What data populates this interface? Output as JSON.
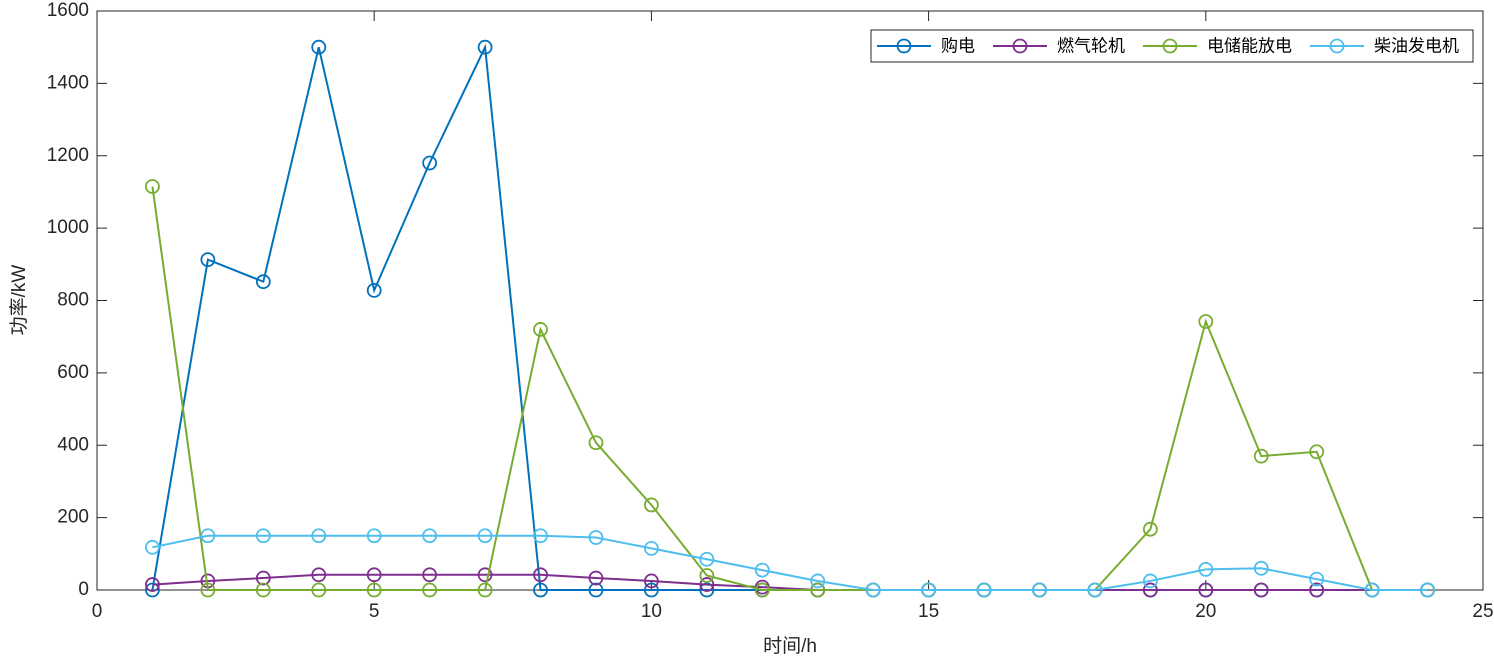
{
  "chart_data": {
    "type": "line",
    "x": [
      1,
      2,
      3,
      4,
      5,
      6,
      7,
      8,
      9,
      10,
      11,
      12,
      13,
      14,
      15,
      16,
      17,
      18,
      19,
      20,
      21,
      22,
      23,
      24
    ],
    "series": [
      {
        "name": "购电",
        "color": "#0072BD",
        "values": [
          0,
          913,
          852,
          1500,
          828,
          1180,
          1500,
          0,
          0,
          0,
          0,
          0,
          0,
          0,
          0,
          0,
          0,
          0,
          0,
          0,
          0,
          0,
          0,
          0
        ]
      },
      {
        "name": "燃气轮机",
        "color": "#7E2F8E",
        "values": [
          15,
          25,
          33,
          42,
          42,
          42,
          42,
          42,
          33,
          25,
          15,
          8,
          0,
          0,
          0,
          0,
          0,
          0,
          0,
          0,
          0,
          0,
          0,
          0
        ]
      },
      {
        "name": "电储能放电",
        "color": "#77AC30",
        "values": [
          1115,
          0,
          0,
          0,
          0,
          0,
          0,
          720,
          407,
          235,
          40,
          0,
          0,
          0,
          0,
          0,
          0,
          0,
          168,
          742,
          370,
          382,
          0,
          0
        ]
      },
      {
        "name": "柴油发电机",
        "color": "#4DBEEE",
        "values": [
          118,
          150,
          150,
          150,
          150,
          150,
          150,
          150,
          145,
          115,
          85,
          55,
          25,
          0,
          0,
          0,
          0,
          0,
          25,
          57,
          60,
          30,
          0,
          0
        ]
      }
    ],
    "xlabel": "时间/h",
    "ylabel": "功率/kW",
    "xlim": [
      0,
      25
    ],
    "xticks": [
      0,
      5,
      10,
      15,
      20,
      25
    ],
    "ylim": [
      0,
      1600
    ],
    "yticks": [
      0,
      200,
      400,
      600,
      800,
      1000,
      1200,
      1400,
      1600
    ],
    "legend": "northeast",
    "marker": "circle"
  }
}
